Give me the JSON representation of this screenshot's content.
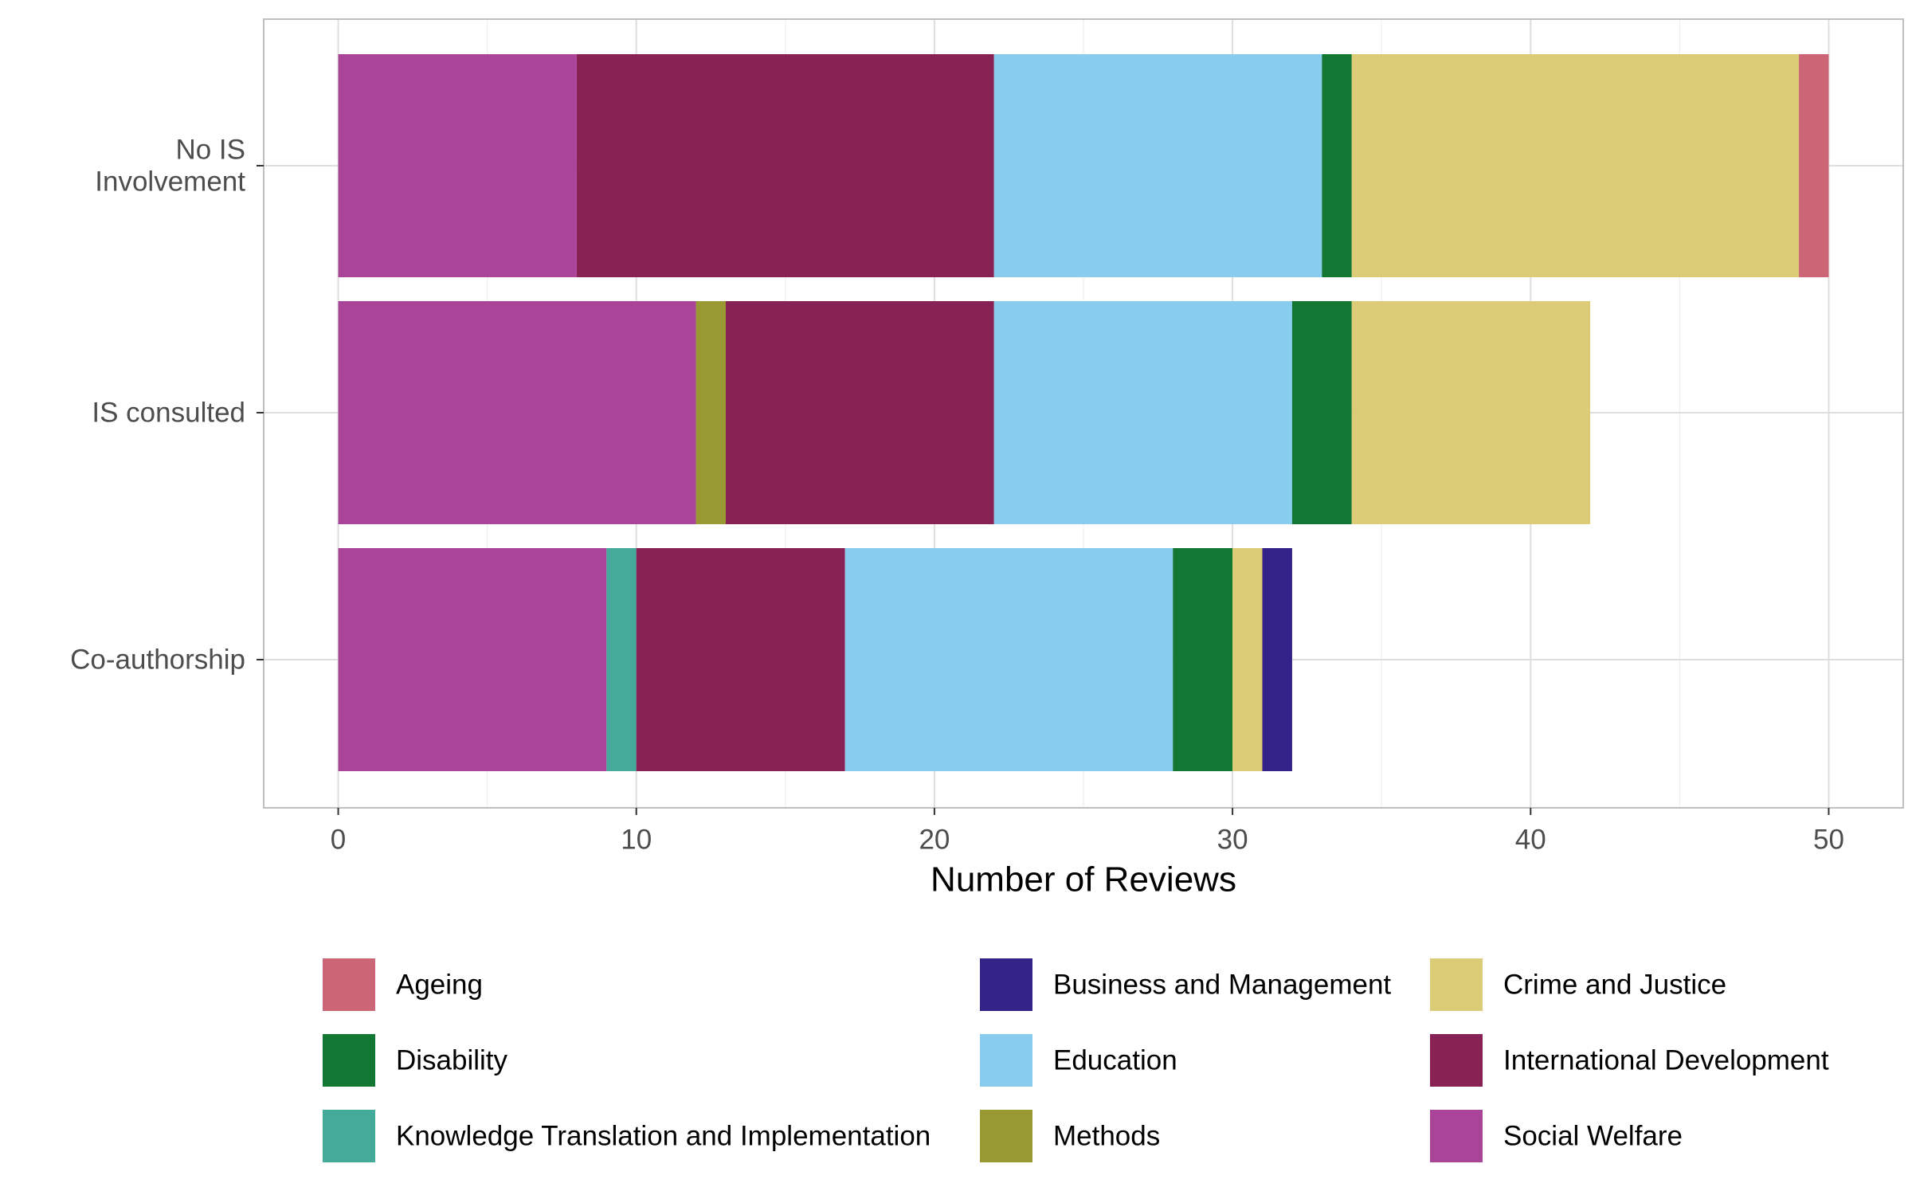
{
  "chart_data": {
    "type": "bar",
    "orientation": "horizontal",
    "stacked": true,
    "title": "",
    "xlabel": "Number of Reviews",
    "ylabel": "",
    "xlim": [
      0,
      52.5
    ],
    "xticks": [
      0,
      10,
      20,
      30,
      40,
      50
    ],
    "grid": true,
    "legend_position": "bottom",
    "categories": [
      [
        "No IS",
        "Involvement"
      ],
      [
        "IS consulted"
      ],
      [
        "Co-authorship"
      ]
    ],
    "series": [
      {
        "name": "Social Welfare",
        "color": "#aa4499",
        "values": [
          8,
          12,
          9
        ]
      },
      {
        "name": "Knowledge Translation and Implementation",
        "color": "#44aa99",
        "values": [
          0,
          0,
          1
        ]
      },
      {
        "name": "Methods",
        "color": "#999933",
        "values": [
          0,
          1,
          0
        ]
      },
      {
        "name": "International Development",
        "color": "#882255",
        "values": [
          14,
          9,
          7
        ]
      },
      {
        "name": "Education",
        "color": "#88ccee",
        "values": [
          11,
          10,
          11
        ]
      },
      {
        "name": "Disability",
        "color": "#117733",
        "values": [
          1,
          2,
          2
        ]
      },
      {
        "name": "Crime and Justice",
        "color": "#ddcc77",
        "values": [
          15,
          8,
          1
        ]
      },
      {
        "name": "Business and Management",
        "color": "#332288",
        "values": [
          0,
          0,
          1
        ]
      },
      {
        "name": "Ageing",
        "color": "#cc6677",
        "values": [
          1,
          0,
          0
        ]
      }
    ],
    "legend_order": [
      "Ageing",
      "Business and Management",
      "Crime and Justice",
      "Disability",
      "Education",
      "International Development",
      "Knowledge Translation and Implementation",
      "Methods",
      "Social Welfare"
    ]
  }
}
